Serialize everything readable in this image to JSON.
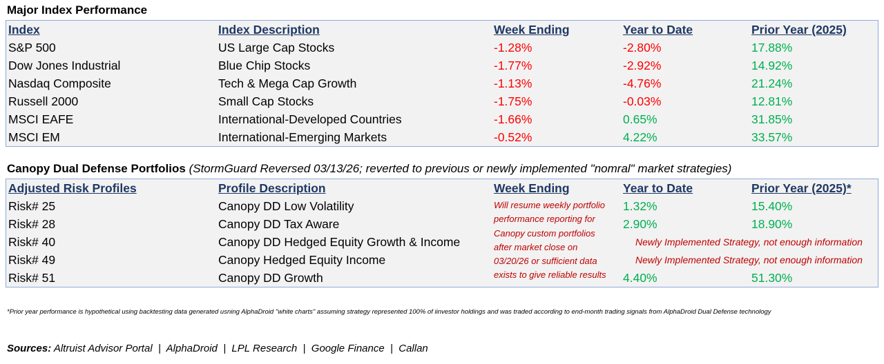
{
  "major": {
    "title": "Major Index Performance",
    "headers": [
      "Index",
      "Index Description",
      "Week Ending",
      "Year to Date",
      "Prior Year (2025)"
    ],
    "rows": [
      {
        "name": "S&P 500",
        "desc": "US Large Cap Stocks",
        "week": "-1.28%",
        "ytd": "-2.80%",
        "prior": "17.88%"
      },
      {
        "name": "Dow Jones Industrial",
        "desc": "Blue Chip Stocks",
        "week": "-1.77%",
        "ytd": "-2.92%",
        "prior": "14.92%"
      },
      {
        "name": "Nasdaq Composite",
        "desc": "Tech & Mega Cap Growth",
        "week": "-1.13%",
        "ytd": "-4.76%",
        "prior": "21.24%"
      },
      {
        "name": "Russell 2000",
        "desc": "Small Cap Stocks",
        "week": "-1.75%",
        "ytd": "-0.03%",
        "prior": "12.81%"
      },
      {
        "name": "MSCI EAFE",
        "desc": "International-Developed Countries",
        "week": "-1.66%",
        "ytd": "0.65%",
        "prior": "31.85%"
      },
      {
        "name": "MSCI EM",
        "desc": "International-Emerging Markets",
        "week": "-0.52%",
        "ytd": "4.22%",
        "prior": "33.57%"
      }
    ]
  },
  "canopy": {
    "title": "Canopy Dual Defense Portfolios",
    "subtitle": "(StormGuard Reversed 03/13/26; reverted to previous or newly implemented \"nomral\" market strategies)",
    "headers": [
      "Adjusted Risk Profiles ",
      "Profile Description",
      "Week Ending",
      "Year to Date",
      "Prior Year (2025)*"
    ],
    "rows": [
      {
        "name": "Risk# 25",
        "desc": "Canopy DD Low Volatility",
        "ytd": "1.32%",
        "prior": "15.40%"
      },
      {
        "name": "Risk# 28",
        "desc": "Canopy DD Tax Aware",
        "ytd": "2.90%",
        "prior": "18.90%"
      },
      {
        "name": "Risk# 40",
        "desc": "Canopy DD Hedged Equity Growth & Income",
        "notice": "Newly Implemented Strategy, not enough information"
      },
      {
        "name": "Risk# 49",
        "desc": "Canopy Hedged Equity Income",
        "notice": "Newly Implemented Strategy, not enough information"
      },
      {
        "name": "Risk# 51",
        "desc": "Canopy DD Growth",
        "ytd": "4.40%",
        "prior": "51.30%"
      }
    ],
    "week_note": [
      "Will resume weekly portfolio",
      "performance reporting for",
      "Canopy custom portfolios",
      "after market close on",
      "03/20/26 or sufficient data",
      "exists to give reliable results"
    ]
  },
  "footnote": "*Prior year performance is hypothetical using backtesting data generated usning AlphaDroid \"white charts\" assuming strategy represented 100% of iinvestor holdings and was traded according to end-month trading signals from AlphaDroid Dual Defense technology",
  "sources": {
    "label": "Sources:",
    "text": "Altruist Advisor Portal  |  AlphaDroid  |  LPL Research  |  Google Finance  |  Callan"
  },
  "colors": {
    "negative": "#ff0000",
    "positive": "#00b050",
    "header": "#1f3864",
    "note": "#c00000",
    "table_bg": "#f2f2f2",
    "border": "#8eaadb"
  }
}
